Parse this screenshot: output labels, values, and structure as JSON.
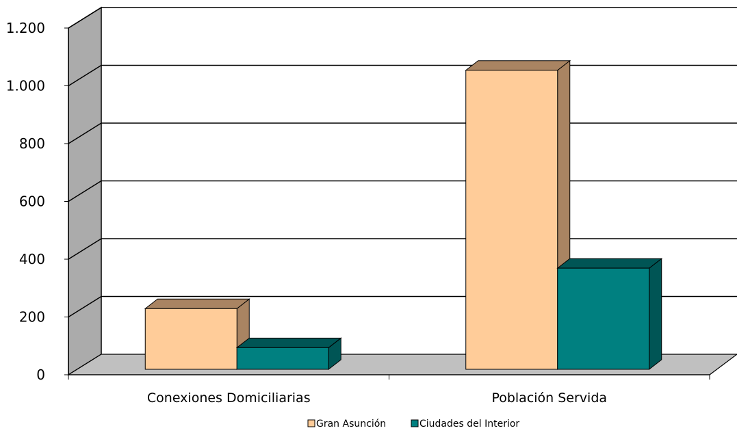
{
  "chart_data": {
    "type": "bar",
    "title": "",
    "xlabel": "",
    "ylabel": "",
    "categories": [
      "Conexiones Domiciliarias",
      "Población Servida"
    ],
    "series": [
      {
        "name": "Gran Asunción",
        "values": [
          210,
          1035
        ],
        "color": "#FFCC99",
        "side_color": "#A98462"
      },
      {
        "name": "Ciudades del Interior",
        "values": [
          75,
          350
        ],
        "color": "#008080",
        "side_color": "#005555"
      }
    ],
    "ylim": [
      0,
      1200
    ],
    "yticks": [
      {
        "value": 0,
        "label": "0"
      },
      {
        "value": 200,
        "label": "200"
      },
      {
        "value": 400,
        "label": "400"
      },
      {
        "value": 600,
        "label": "600"
      },
      {
        "value": 800,
        "label": "800"
      },
      {
        "value": 1000,
        "label": "1.000"
      },
      {
        "value": 1200,
        "label": "1.200"
      }
    ],
    "grid": true,
    "legend_position": "bottom",
    "wall_color": "#ABABAB",
    "floor_color": "#C0C0C0"
  }
}
